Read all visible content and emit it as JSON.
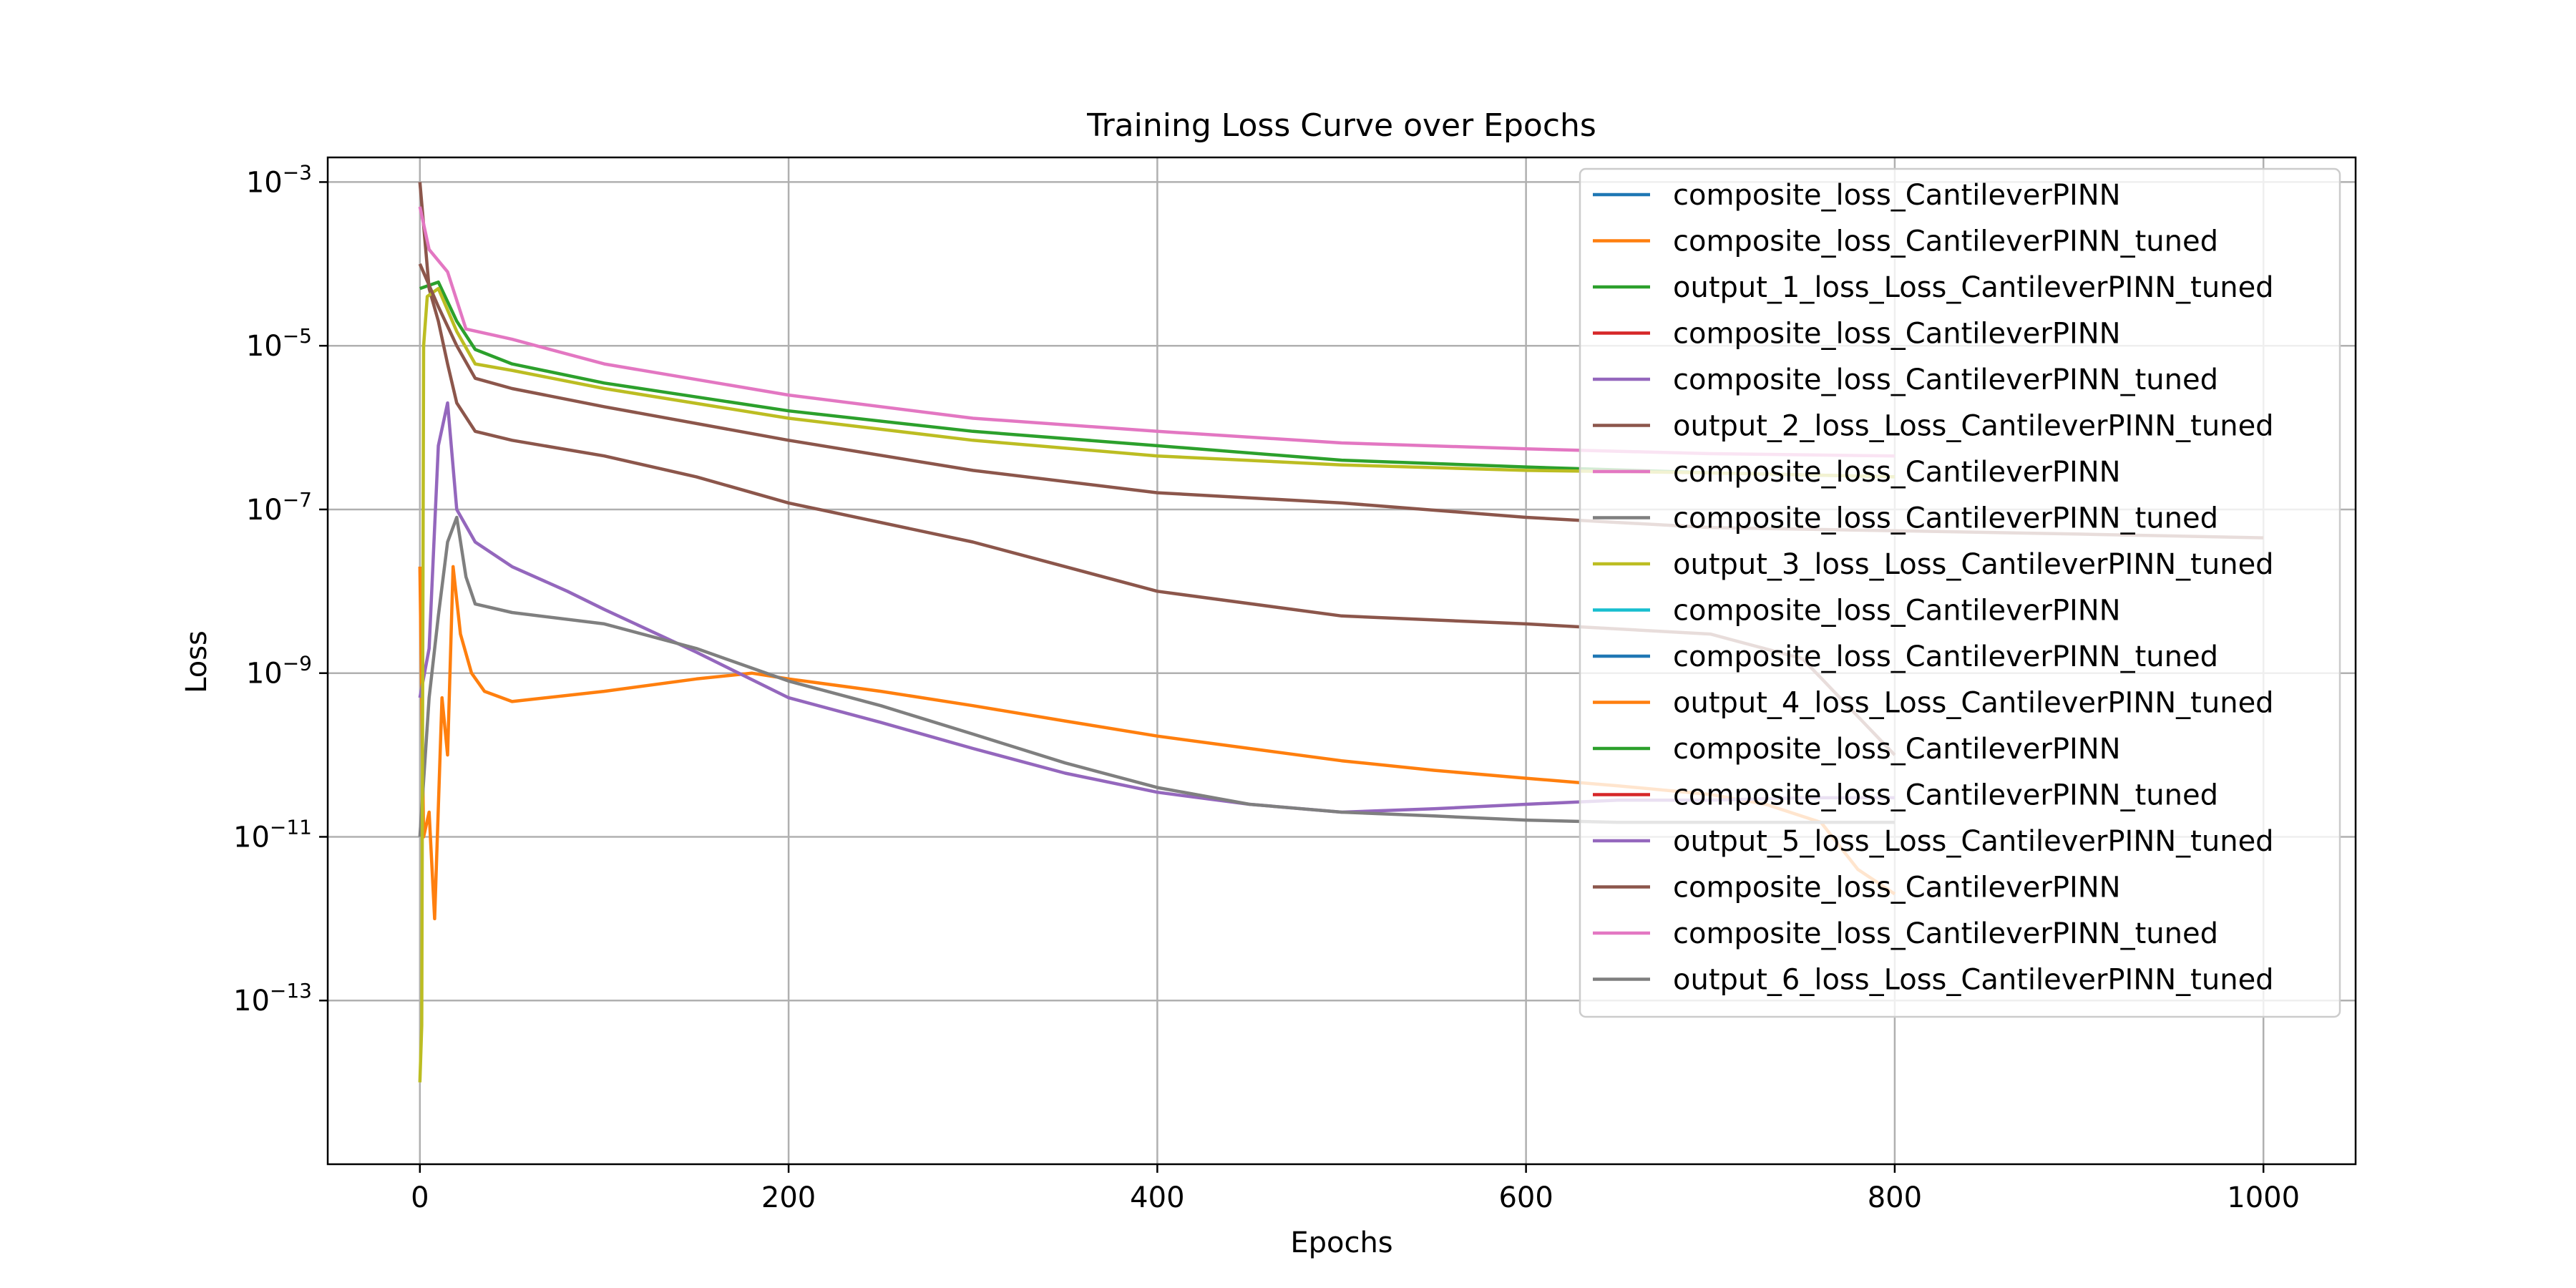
{
  "chart_data": {
    "type": "line",
    "title": "Training Loss Curve over Epochs",
    "xlabel": "Epochs",
    "ylabel": "Loss",
    "yscale": "log",
    "xlim": [
      -50,
      1050
    ],
    "ylim": [
      1e-15,
      0.002
    ],
    "xticks": [
      0,
      200,
      400,
      600,
      800,
      1000
    ],
    "xtick_labels": [
      "0",
      "200",
      "400",
      "600",
      "800",
      "1000"
    ],
    "yticks": [
      1e-13,
      1e-11,
      1e-09,
      1e-07,
      1e-05,
      0.001
    ],
    "ytick_base": "10",
    "ytick_exponents": [
      "−13",
      "−11",
      "−9",
      "−7",
      "−5",
      "−3"
    ],
    "grid": true,
    "legend_position": "upper right",
    "series": [
      {
        "name": "composite_loss_CantileverPINN",
        "color": "#1f77b4",
        "points": []
      },
      {
        "name": "composite_loss_CantileverPINN_tuned",
        "color": "#ff7f0e",
        "points": [
          [
            0,
            2e-08
          ],
          [
            2,
            1e-11
          ],
          [
            5,
            2e-11
          ],
          [
            8,
            1e-12
          ],
          [
            12,
            5e-10
          ],
          [
            15,
            1e-10
          ],
          [
            18,
            2e-08
          ],
          [
            22,
            3e-09
          ],
          [
            28,
            1e-09
          ],
          [
            35,
            6e-10
          ],
          [
            50,
            4.5e-10
          ],
          [
            100,
            6e-10
          ],
          [
            150,
            8.5e-10
          ],
          [
            180,
            1e-09
          ],
          [
            200,
            8.5e-10
          ],
          [
            250,
            6e-10
          ],
          [
            300,
            4e-10
          ],
          [
            350,
            2.6e-10
          ],
          [
            400,
            1.7e-10
          ],
          [
            450,
            1.2e-10
          ],
          [
            500,
            8.5e-11
          ],
          [
            550,
            6.5e-11
          ],
          [
            600,
            5.2e-11
          ],
          [
            650,
            4.2e-11
          ],
          [
            700,
            3.3e-11
          ],
          [
            730,
            2.5e-11
          ],
          [
            760,
            1.5e-11
          ],
          [
            780,
            4e-12
          ],
          [
            800,
            2e-12
          ]
        ]
      },
      {
        "name": "output_1_loss_Loss_CantileverPINN_tuned",
        "color": "#2ca02c",
        "points": [
          [
            0,
            5e-05
          ],
          [
            10,
            6e-05
          ],
          [
            20,
            2e-05
          ],
          [
            30,
            9e-06
          ],
          [
            50,
            6e-06
          ],
          [
            100,
            3.5e-06
          ],
          [
            200,
            1.6e-06
          ],
          [
            300,
            9e-07
          ],
          [
            400,
            6e-07
          ],
          [
            500,
            4e-07
          ],
          [
            600,
            3.3e-07
          ],
          [
            700,
            2.8e-07
          ],
          [
            800,
            2.5e-07
          ]
        ]
      },
      {
        "name": "composite_loss_CantileverPINN",
        "color": "#d62728",
        "points": []
      },
      {
        "name": "composite_loss_CantileverPINN_tuned",
        "color": "#9467bd",
        "points": [
          [
            0,
            5e-10
          ],
          [
            5,
            2e-09
          ],
          [
            10,
            6e-07
          ],
          [
            15,
            2e-06
          ],
          [
            20,
            1e-07
          ],
          [
            30,
            4e-08
          ],
          [
            50,
            2e-08
          ],
          [
            80,
            1e-08
          ],
          [
            100,
            6e-09
          ],
          [
            150,
            1.8e-09
          ],
          [
            200,
            5e-10
          ],
          [
            250,
            2.5e-10
          ],
          [
            300,
            1.2e-10
          ],
          [
            350,
            6e-11
          ],
          [
            400,
            3.5e-11
          ],
          [
            450,
            2.5e-11
          ],
          [
            500,
            2e-11
          ],
          [
            550,
            2.2e-11
          ],
          [
            600,
            2.5e-11
          ],
          [
            650,
            2.8e-11
          ],
          [
            700,
            2.8e-11
          ],
          [
            750,
            3e-11
          ],
          [
            800,
            3e-11
          ]
        ]
      },
      {
        "name": "output_2_loss_Loss_CantileverPINN_tuned",
        "color": "#8c564b",
        "points": [
          [
            0,
            0.001
          ],
          [
            5,
            5e-05
          ],
          [
            10,
            2e-05
          ],
          [
            15,
            6e-06
          ],
          [
            20,
            2e-06
          ],
          [
            30,
            9e-07
          ],
          [
            50,
            7e-07
          ],
          [
            100,
            4.5e-07
          ],
          [
            150,
            2.5e-07
          ],
          [
            200,
            1.2e-07
          ],
          [
            300,
            4e-08
          ],
          [
            400,
            1e-08
          ],
          [
            500,
            5e-09
          ],
          [
            600,
            4e-09
          ],
          [
            700,
            3e-09
          ],
          [
            750,
            1.5e-09
          ],
          [
            800,
            1e-10
          ]
        ]
      },
      {
        "name": "composite_loss_CantileverPINN",
        "color": "#e377c2",
        "points": [
          [
            0,
            0.0005
          ],
          [
            5,
            0.00015
          ],
          [
            15,
            8e-05
          ],
          [
            25,
            1.6e-05
          ],
          [
            50,
            1.2e-05
          ],
          [
            100,
            6e-06
          ],
          [
            200,
            2.5e-06
          ],
          [
            300,
            1.3e-06
          ],
          [
            400,
            9e-07
          ],
          [
            500,
            6.5e-07
          ],
          [
            600,
            5.5e-07
          ],
          [
            700,
            4.8e-07
          ],
          [
            800,
            4.5e-07
          ]
        ]
      },
      {
        "name": "composite_loss_CantileverPINN_tuned",
        "color": "#7f7f7f",
        "points": [
          [
            0,
            1e-11
          ],
          [
            5,
            5e-10
          ],
          [
            10,
            5e-09
          ],
          [
            15,
            4e-08
          ],
          [
            20,
            8e-08
          ],
          [
            25,
            1.5e-08
          ],
          [
            30,
            7e-09
          ],
          [
            50,
            5.5e-09
          ],
          [
            100,
            4e-09
          ],
          [
            150,
            2e-09
          ],
          [
            200,
            8e-10
          ],
          [
            250,
            4e-10
          ],
          [
            300,
            1.8e-10
          ],
          [
            350,
            8e-11
          ],
          [
            400,
            4e-11
          ],
          [
            450,
            2.5e-11
          ],
          [
            500,
            2e-11
          ],
          [
            550,
            1.8e-11
          ],
          [
            600,
            1.6e-11
          ],
          [
            650,
            1.5e-11
          ],
          [
            700,
            1.5e-11
          ],
          [
            750,
            1.5e-11
          ],
          [
            800,
            1.5e-11
          ]
        ]
      },
      {
        "name": "output_3_loss_Loss_CantileverPINN_tuned",
        "color": "#bcbd22",
        "points": [
          [
            0,
            1e-14
          ],
          [
            1,
            5e-14
          ],
          [
            2,
            1e-05
          ],
          [
            4,
            4e-05
          ],
          [
            10,
            5e-05
          ],
          [
            20,
            1.5e-05
          ],
          [
            30,
            6e-06
          ],
          [
            50,
            5e-06
          ],
          [
            100,
            3e-06
          ],
          [
            200,
            1.3e-06
          ],
          [
            300,
            7e-07
          ],
          [
            400,
            4.5e-07
          ],
          [
            500,
            3.5e-07
          ],
          [
            600,
            3e-07
          ],
          [
            700,
            2.8e-07
          ],
          [
            800,
            2.5e-07
          ]
        ]
      },
      {
        "name": "composite_loss_CantileverPINN",
        "color": "#17becf",
        "points": []
      },
      {
        "name": "composite_loss_CantileverPINN_tuned",
        "color": "#1f77b4",
        "points": []
      },
      {
        "name": "output_4_loss_Loss_CantileverPINN_tuned",
        "color": "#ff7f0e",
        "points": []
      },
      {
        "name": "composite_loss_CantileverPINN",
        "color": "#2ca02c",
        "points": []
      },
      {
        "name": "composite_loss_CantileverPINN_tuned",
        "color": "#d62728",
        "points": []
      },
      {
        "name": "output_5_loss_Loss_CantileverPINN_tuned",
        "color": "#9467bd",
        "points": []
      },
      {
        "name": "composite_loss_CantileverPINN",
        "color": "#8c564b",
        "points": [
          [
            0,
            0.0001
          ],
          [
            10,
            3e-05
          ],
          [
            20,
            1e-05
          ],
          [
            30,
            4e-06
          ],
          [
            50,
            3e-06
          ],
          [
            100,
            1.8e-06
          ],
          [
            200,
            7e-07
          ],
          [
            300,
            3e-07
          ],
          [
            400,
            1.6e-07
          ],
          [
            500,
            1.2e-07
          ],
          [
            600,
            8e-08
          ],
          [
            700,
            6e-08
          ],
          [
            800,
            5.5e-08
          ],
          [
            900,
            5e-08
          ],
          [
            1000,
            4.5e-08
          ]
        ]
      },
      {
        "name": "composite_loss_CantileverPINN_tuned",
        "color": "#e377c2",
        "points": []
      },
      {
        "name": "output_6_loss_Loss_CantileverPINN_tuned",
        "color": "#7f7f7f",
        "points": []
      }
    ]
  }
}
